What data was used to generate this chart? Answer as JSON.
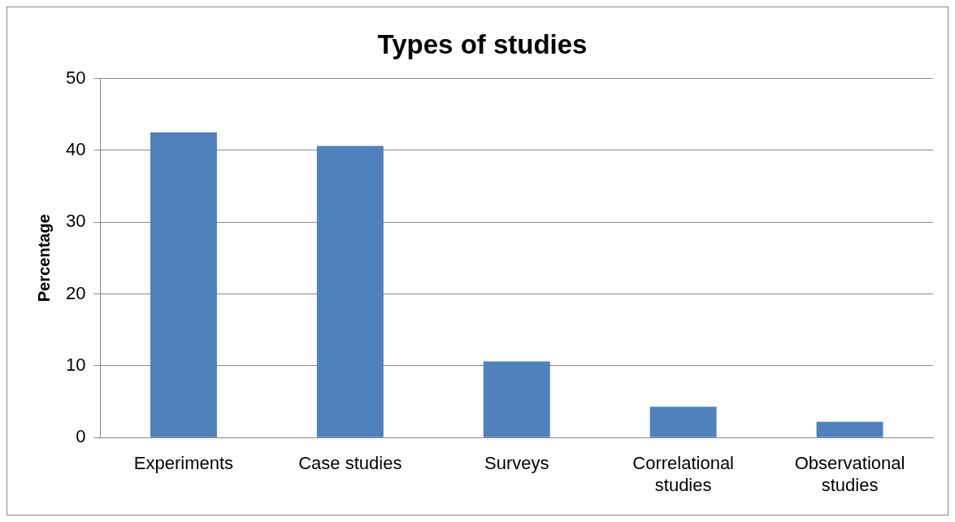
{
  "chart_data": {
    "type": "bar",
    "title": "Types of studies",
    "ylabel": "Percentage",
    "categories": [
      "Experiments",
      "Case studies",
      "Surveys",
      "Correlational studies",
      "Observational studies"
    ],
    "values": [
      42.5,
      40.6,
      10.6,
      4.3,
      2.2
    ],
    "color": "#4f81bd",
    "ylim": [
      0,
      50
    ],
    "yticks": [
      0,
      10,
      20,
      30,
      40,
      50
    ],
    "grid": "y",
    "legend": false
  }
}
